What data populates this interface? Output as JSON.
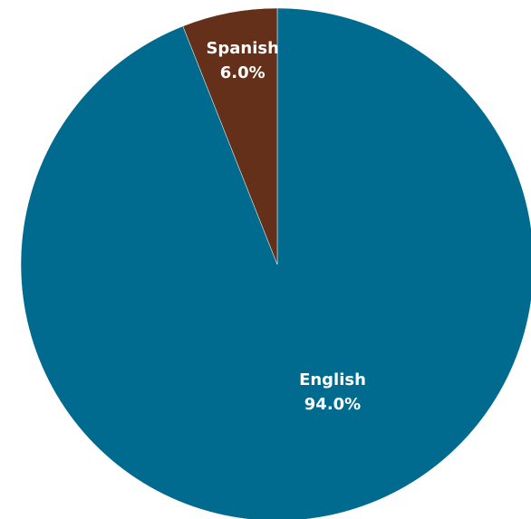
{
  "chart_data": {
    "type": "pie",
    "title": "",
    "slices": [
      {
        "label": "English",
        "value": 94.0,
        "value_label": "94.0%",
        "color": "#006b8f"
      },
      {
        "label": "Spanish",
        "value": 6.0,
        "value_label": "6.0%",
        "color": "#65301a"
      }
    ],
    "start_angle": "12 o'clock",
    "direction": "clockwise",
    "legend": "none"
  }
}
